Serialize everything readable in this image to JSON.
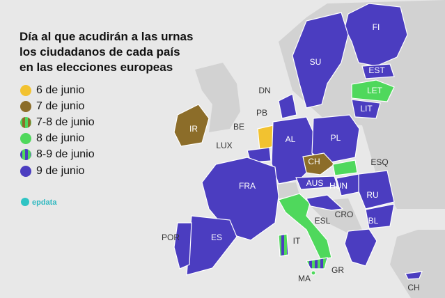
{
  "title": [
    "Día al que acudirán a las urnas",
    "los ciudadanos de cada país",
    "en las elecciones europeas"
  ],
  "legend": [
    "6 de junio",
    "7 de junio",
    "7-8 de junio",
    "8 de junio",
    "8-9 de junio",
    "9 de junio"
  ],
  "logo": "epdata",
  "labels": [
    "FI",
    "SU",
    "EST",
    "LET",
    "LIT",
    "DN",
    "PB",
    "BE",
    "LUX",
    "IR",
    "AL",
    "PL",
    "CH",
    "ESQ",
    "AUS",
    "HUN",
    "RU",
    "FRA",
    "ESL",
    "CRO",
    "BL",
    "POR",
    "ES",
    "IT",
    "MA",
    "GR",
    "CH"
  ]
}
